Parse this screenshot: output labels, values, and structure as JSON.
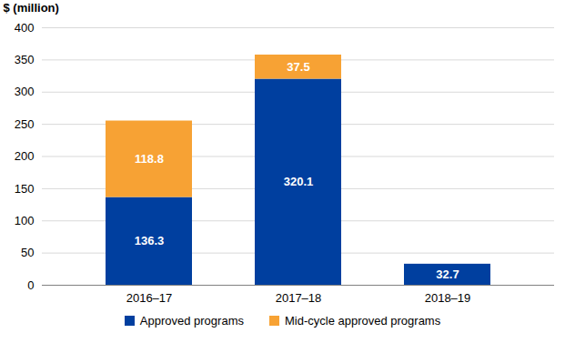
{
  "chart_data": {
    "type": "bar",
    "stacked": true,
    "y_label": "$ (million)",
    "categories": [
      "2016–17",
      "2017–18",
      "2018–19"
    ],
    "series": [
      {
        "name": "Approved programs",
        "color": "#003f9f",
        "values": [
          136.3,
          320.1,
          32.7
        ]
      },
      {
        "name": "Mid-cycle approved programs",
        "color": "#f7a234",
        "values": [
          118.8,
          37.5,
          null
        ]
      }
    ],
    "ylim": [
      0,
      400
    ],
    "yticks": [
      0,
      50,
      100,
      150,
      200,
      250,
      300,
      350,
      400
    ],
    "grid": true,
    "data_labels": true,
    "legend": "bottom"
  }
}
